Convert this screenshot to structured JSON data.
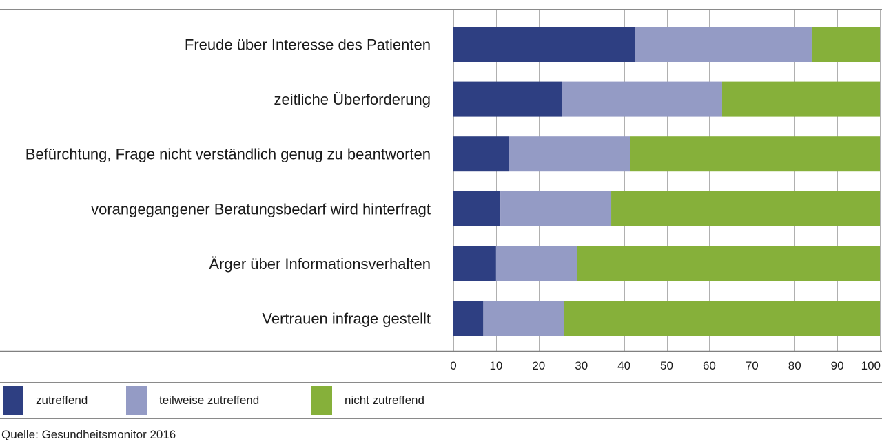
{
  "colors": {
    "zutreffend": "#2e3f82",
    "teilweise": "#949bc5",
    "nicht": "#86b03a",
    "grid": "#b0b0b0",
    "axis": "#808080"
  },
  "chart_data": {
    "type": "bar",
    "orientation": "horizontal",
    "stacked": true,
    "categories": [
      "Freude über Interesse des Patienten",
      "zeitliche Überforderung",
      "Befürchtung, Frage nicht verständlich genug zu beantworten",
      "vorangegangener Beratungsbedarf wird hinterfragt",
      "Ärger über Informationsverhalten",
      "Vertrauen infrage gestellt"
    ],
    "series": [
      {
        "name": "zutreffend",
        "values": [
          42.5,
          25.5,
          13,
          11,
          10,
          7
        ]
      },
      {
        "name": "teilweise zutreffend",
        "values": [
          41.5,
          37.5,
          28.5,
          26,
          19,
          19
        ]
      },
      {
        "name": "nicht zutreffend",
        "values": [
          16,
          37,
          58.5,
          63,
          71,
          74
        ]
      }
    ],
    "xlim": [
      0,
      100
    ],
    "xticks": [
      0,
      10,
      20,
      30,
      40,
      50,
      60,
      70,
      80,
      90,
      100
    ],
    "grid": "vertical",
    "legend_position": "bottom"
  },
  "legend": {
    "items": [
      "zutreffend",
      "teilweise zutreffend",
      "nicht zutreffend"
    ]
  },
  "source": "Quelle: Gesundheitsmonitor 2016"
}
